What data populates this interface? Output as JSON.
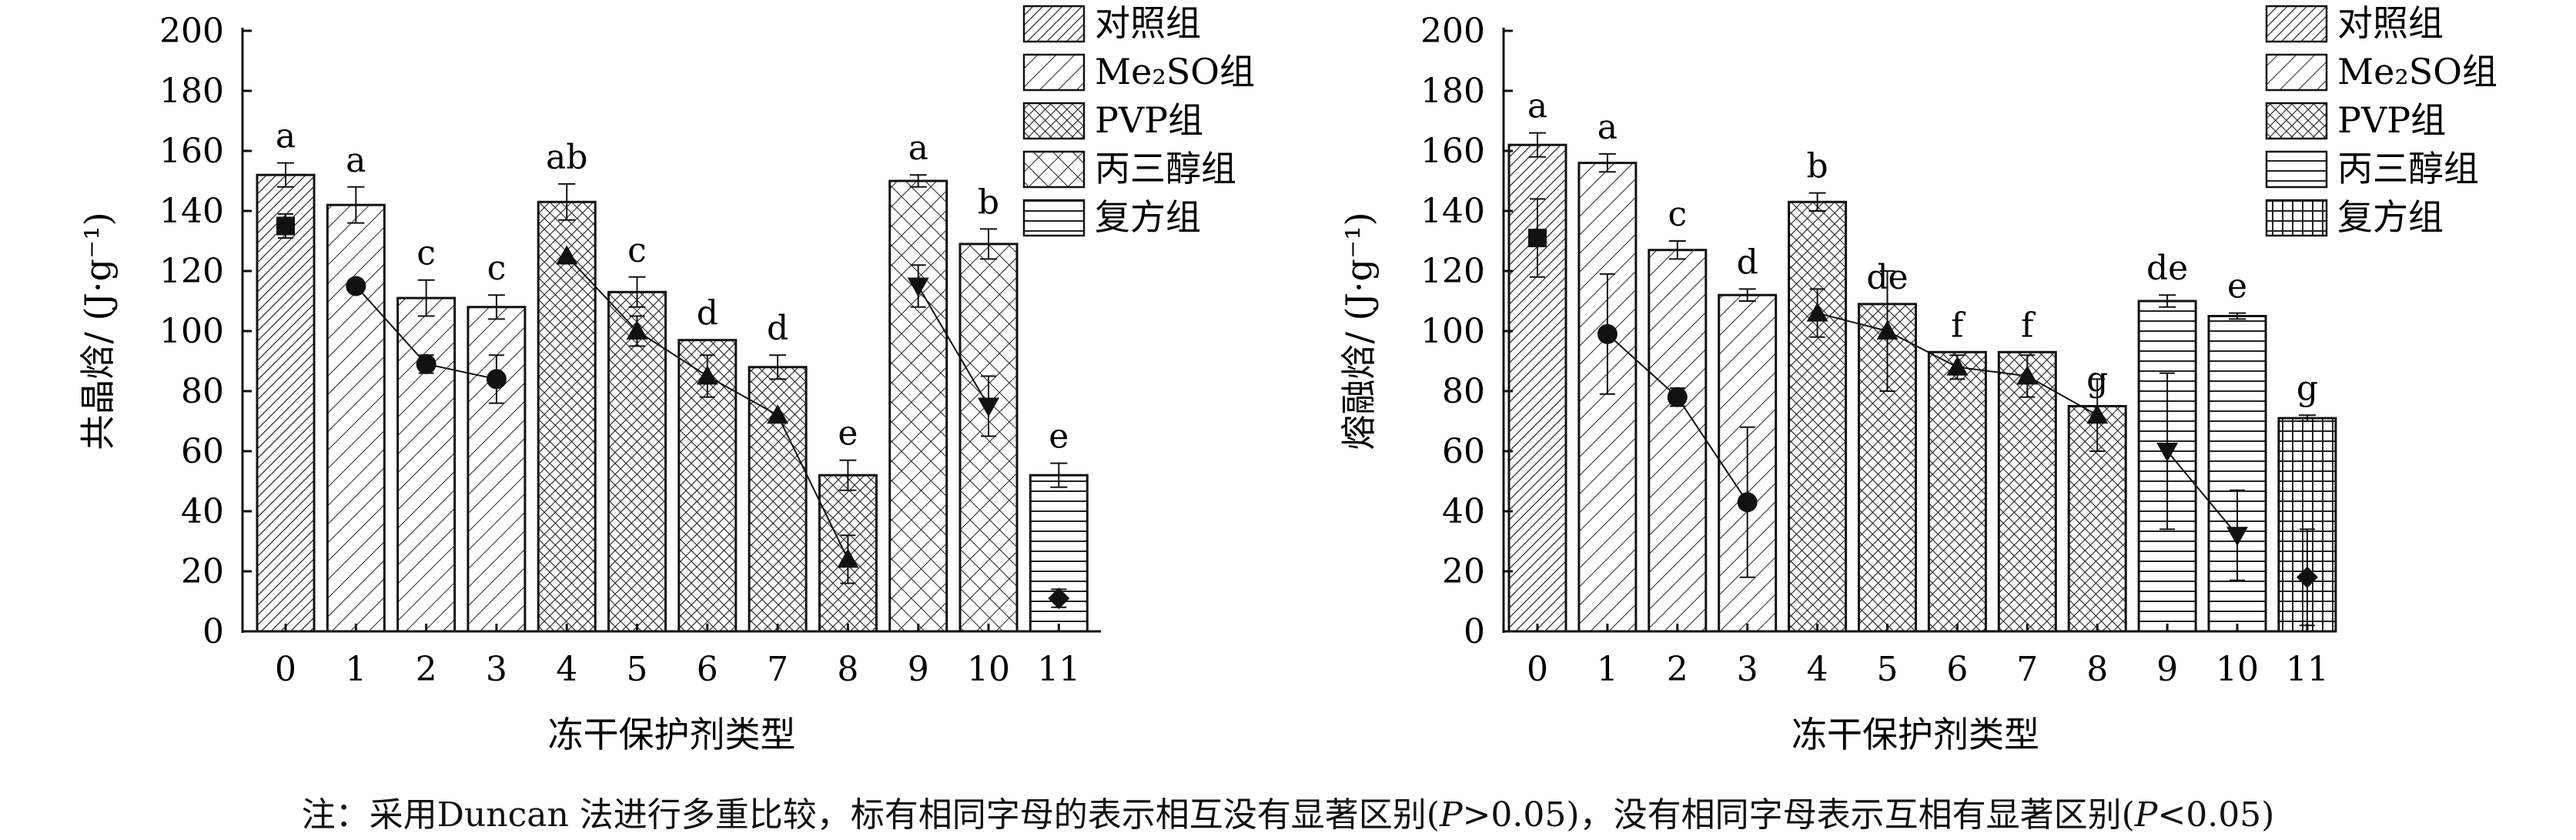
{
  "chart_data": [
    {
      "type": "bar",
      "ylabel": "共晶焓/ (J·g⁻¹)",
      "xlabel": "冻干保护剂类型",
      "ylim": [
        0,
        200
      ],
      "yticks": [
        0,
        20,
        40,
        60,
        80,
        100,
        120,
        140,
        160,
        180,
        200
      ],
      "categories": [
        "0",
        "1",
        "2",
        "3",
        "4",
        "5",
        "6",
        "7",
        "8",
        "9",
        "10",
        "11"
      ],
      "values": [
        152,
        142,
        111,
        108,
        143,
        113,
        97,
        88,
        52,
        150,
        129,
        52
      ],
      "errors": [
        4,
        6,
        6,
        4,
        6,
        5,
        0,
        4,
        5,
        2,
        5,
        4
      ],
      "letters": [
        "a",
        "a",
        "c",
        "c",
        "ab",
        "c",
        "d",
        "d",
        "e",
        "a",
        "b",
        "e"
      ],
      "bar_groups": [
        0,
        1,
        1,
        1,
        2,
        2,
        2,
        2,
        2,
        3,
        3,
        4
      ],
      "legend": [
        "对照组",
        "Me₂SO组",
        "PVP组",
        "丙三醇组",
        "复方组"
      ],
      "legend_position": "top-right",
      "markers": [
        {
          "category": "0",
          "y": 135,
          "err": 4,
          "shape": "square"
        },
        {
          "category": "1",
          "y": 115,
          "err": 0,
          "shape": "circle"
        },
        {
          "category": "2",
          "y": 89,
          "err": 3,
          "shape": "circle"
        },
        {
          "category": "3",
          "y": 84,
          "err": 8,
          "shape": "circle"
        },
        {
          "category": "4",
          "y": 125,
          "err": 0,
          "shape": "triangle-up"
        },
        {
          "category": "5",
          "y": 100,
          "err": 5,
          "shape": "triangle-up"
        },
        {
          "category": "6",
          "y": 85,
          "err": 7,
          "shape": "triangle-up"
        },
        {
          "category": "7",
          "y": 72,
          "err": 0,
          "shape": "triangle-up"
        },
        {
          "category": "8",
          "y": 24,
          "err": 8,
          "shape": "triangle-up"
        },
        {
          "category": "9",
          "y": 115,
          "err": 7,
          "shape": "triangle-down"
        },
        {
          "category": "10",
          "y": 75,
          "err": 10,
          "shape": "triangle-down"
        },
        {
          "category": "11",
          "y": 11,
          "err": 3,
          "shape": "diamond"
        }
      ],
      "marker_lines": [
        [
          1,
          2,
          3
        ],
        [
          4,
          5,
          6,
          7,
          8
        ],
        [
          9,
          10
        ]
      ]
    },
    {
      "type": "bar",
      "ylabel": "熔融焓/ (J·g⁻¹)",
      "xlabel": "冻干保护剂类型",
      "ylim": [
        0,
        200
      ],
      "yticks": [
        0,
        20,
        40,
        60,
        80,
        100,
        120,
        140,
        160,
        180,
        200
      ],
      "categories": [
        "0",
        "1",
        "2",
        "3",
        "4",
        "5",
        "6",
        "7",
        "8",
        "9",
        "10",
        "11"
      ],
      "values": [
        162,
        156,
        127,
        112,
        143,
        109,
        93,
        93,
        75,
        110,
        105,
        71
      ],
      "errors": [
        4,
        3,
        3,
        2,
        3,
        0,
        0,
        0,
        0,
        2,
        1,
        1
      ],
      "letters": [
        "a",
        "a",
        "c",
        "d",
        "b",
        "de",
        "f",
        "f",
        "g",
        "de",
        "e",
        "g"
      ],
      "bar_groups": [
        0,
        1,
        1,
        1,
        2,
        2,
        2,
        2,
        2,
        3,
        3,
        4
      ],
      "legend": [
        "对照组",
        "Me₂SO组",
        "PVP组",
        "丙三醇组",
        "复方组"
      ],
      "legend_position": "top-right",
      "markers": [
        {
          "category": "0",
          "y": 131,
          "err": 13,
          "shape": "square"
        },
        {
          "category": "1",
          "y": 99,
          "err": 20,
          "shape": "circle"
        },
        {
          "category": "2",
          "y": 78,
          "err": 3,
          "shape": "circle"
        },
        {
          "category": "3",
          "y": 43,
          "err": 25,
          "shape": "circle"
        },
        {
          "category": "4",
          "y": 106,
          "err": 8,
          "shape": "triangle-up"
        },
        {
          "category": "5",
          "y": 100,
          "err": 20,
          "shape": "triangle-up"
        },
        {
          "category": "6",
          "y": 88,
          "err": 4,
          "shape": "triangle-up"
        },
        {
          "category": "7",
          "y": 85,
          "err": 7,
          "shape": "triangle-up"
        },
        {
          "category": "8",
          "y": 72,
          "err": 12,
          "shape": "triangle-up"
        },
        {
          "category": "9",
          "y": 60,
          "err": 26,
          "shape": "triangle-down"
        },
        {
          "category": "10",
          "y": 32,
          "err": 15,
          "shape": "triangle-down"
        },
        {
          "category": "11",
          "y": 18,
          "err": 16,
          "shape": "diamond"
        }
      ],
      "marker_lines": [
        [
          1,
          2,
          3
        ],
        [
          4,
          5,
          6,
          7,
          8
        ],
        [
          9,
          10
        ]
      ]
    }
  ],
  "note": {
    "prefix": "注：采用Duncan 法进行多重比较，标有相同字母的表示相互没有显著区别(",
    "p1": "P",
    "mid": ">0.05)，没有相同字母表示互相有显著区别(",
    "p2": "P",
    "suffix": "<0.05)"
  }
}
